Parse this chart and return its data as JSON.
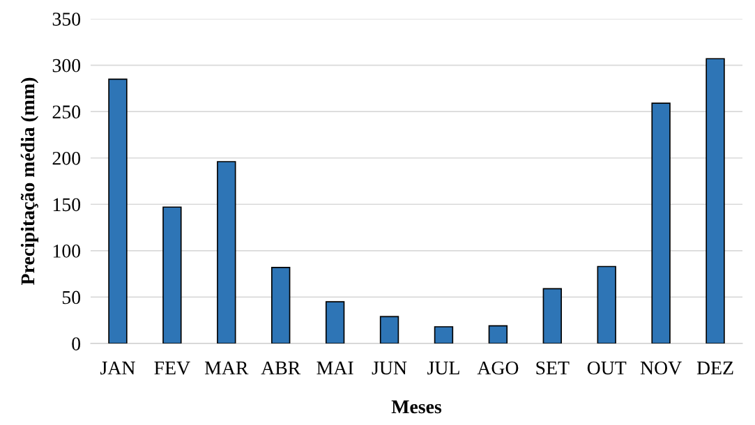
{
  "chart_data": {
    "type": "bar",
    "xlabel": "Meses",
    "ylabel": "Precipitação média (mm)",
    "categories": [
      "JAN",
      "FEV",
      "MAR",
      "ABR",
      "MAI",
      "JUN",
      "JUL",
      "AGO",
      "SET",
      "OUT",
      "NOV",
      "DEZ"
    ],
    "values": [
      285,
      147,
      196,
      82,
      45,
      29,
      18,
      19,
      59,
      83,
      259,
      307
    ],
    "color": "#2e75b6",
    "ylim": [
      0,
      350
    ],
    "yticks": [
      0,
      50,
      100,
      150,
      200,
      250,
      300,
      350
    ],
    "grid": "y"
  }
}
